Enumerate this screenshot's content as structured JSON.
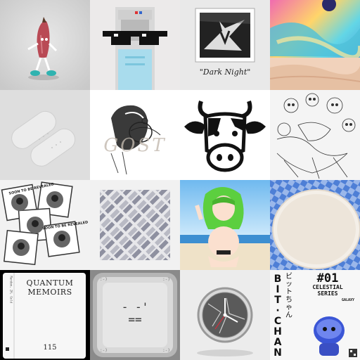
{
  "gallery": {
    "tiles": [
      {
        "id": "banana-figure"
      },
      {
        "id": "pixel-sunglasses"
      },
      {
        "id": "dark-night",
        "caption": "\"Dark Night\""
      },
      {
        "id": "desert-cosmos"
      },
      {
        "id": "white-ovals"
      },
      {
        "id": "ghost-sketch",
        "overlay": "GOST"
      },
      {
        "id": "cow-head"
      },
      {
        "id": "skull-etching"
      },
      {
        "id": "soon-revealed-stickers",
        "sticker_text": "SOON TO BE REVEALED"
      },
      {
        "id": "diagonal-weave"
      },
      {
        "id": "anime-girl"
      },
      {
        "id": "white-plate"
      },
      {
        "id": "quantum-memoirs",
        "title": "QUANTUM\nMEMOIRS",
        "number": "115",
        "spine": "Random, 2H, Gold"
      },
      {
        "id": "console-face",
        "corner_text": ":-)",
        "face": "- -'\n=="
      },
      {
        "id": "cracked-clock"
      },
      {
        "id": "bit-chan",
        "vertical_latin": "BIT·CHAN",
        "vertical_jp": "ビットちゃん",
        "number": "#01",
        "series": "CELESTIAL\nSERIES",
        "sub": "GALAXY"
      }
    ]
  },
  "colors": {
    "bg": "#ffffff"
  }
}
